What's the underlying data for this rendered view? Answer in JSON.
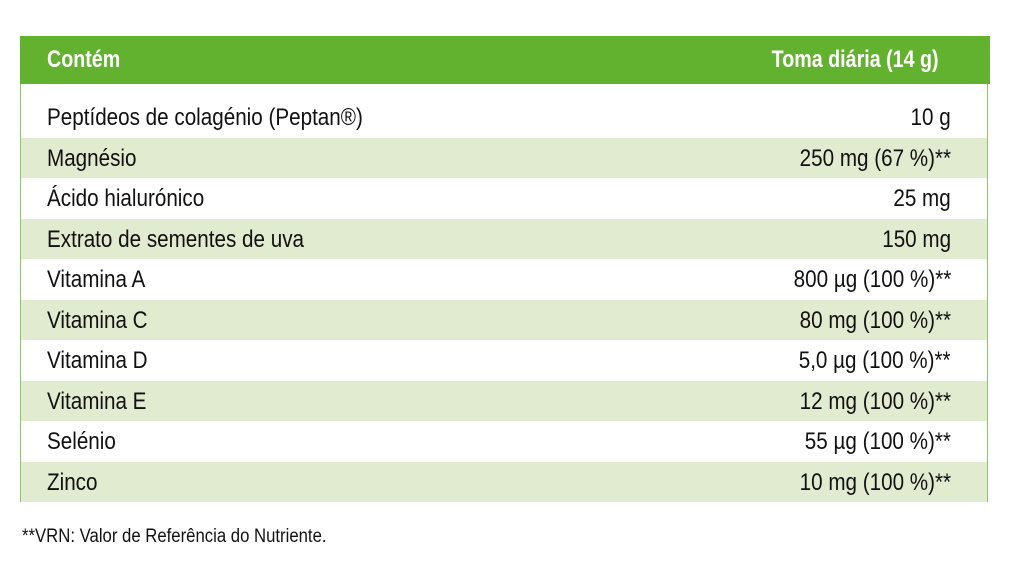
{
  "header": {
    "col1": "Contém",
    "col2": "Toma diária (14 g)"
  },
  "rows": [
    {
      "name": "Peptídeos de colagénio (Peptan®)",
      "value": "10 g"
    },
    {
      "name": "Magnésio",
      "value": "250 mg (67 %)**"
    },
    {
      "name": "Ácido hialurónico",
      "value": "25 mg"
    },
    {
      "name": "Extrato de sementes de uva",
      "value": "150 mg"
    },
    {
      "name": "Vitamina A",
      "value": "800 µg (100 %)**"
    },
    {
      "name": "Vitamina C",
      "value": "80 mg (100 %)**"
    },
    {
      "name": "Vitamina D",
      "value": "5,0 µg (100 %)**"
    },
    {
      "name": "Vitamina E",
      "value": "12 mg (100 %)**"
    },
    {
      "name": "Selénio",
      "value": "55 µg (100 %)**"
    },
    {
      "name": "Zinco",
      "value": "10 mg (100 %)**"
    }
  ],
  "footnote": "**VRN: Valor de Referência do Nutriente.",
  "colors": {
    "header": "#63b22f",
    "stripe": "#e0ebd0",
    "border": "#8cc860"
  }
}
